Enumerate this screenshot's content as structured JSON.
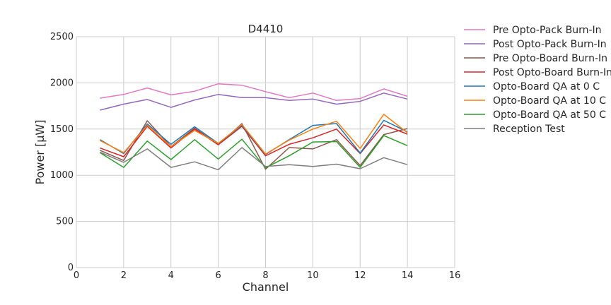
{
  "chart_data": {
    "type": "line",
    "title": "D4410",
    "xlabel": "Channel",
    "ylabel": "Power [μW]",
    "xlim": [
      0,
      16
    ],
    "ylim": [
      0,
      2500
    ],
    "xticks": [
      0,
      2,
      4,
      6,
      8,
      10,
      12,
      14,
      16
    ],
    "yticks": [
      0,
      500,
      1000,
      1500,
      2000,
      2500
    ],
    "grid": true,
    "legend_position": "outside right",
    "x": [
      1,
      2,
      3,
      4,
      5,
      6,
      7,
      8,
      9,
      10,
      11,
      12,
      13,
      14
    ],
    "series": [
      {
        "name": "Pre Opto-Pack Burn-In",
        "color": "#e377c2",
        "values": [
          1835,
          1875,
          1945,
          1870,
          1910,
          1990,
          1975,
          1905,
          1840,
          1890,
          1810,
          1830,
          1935,
          1855
        ]
      },
      {
        "name": "Post Opto-Pack Burn-In",
        "color": "#9467bd",
        "values": [
          1705,
          1770,
          1820,
          1735,
          1815,
          1875,
          1840,
          1840,
          1810,
          1825,
          1770,
          1800,
          1890,
          1825
        ]
      },
      {
        "name": "Pre Opto-Board Burn-In",
        "color": "#8c564b",
        "values": [
          1270,
          1160,
          1590,
          1310,
          1510,
          1330,
          1560,
          1065,
          1300,
          1285,
          1385,
          1105,
          1440,
          1505
        ]
      },
      {
        "name": "Post Opto-Board Burn-In",
        "color": "#d62728",
        "values": [
          1295,
          1200,
          1530,
          1295,
          1500,
          1330,
          1530,
          1210,
          1335,
          1405,
          1500,
          1235,
          1545,
          1445
        ]
      },
      {
        "name": "Opto-Board QA at 0 C",
        "color": "#1f77b4",
        "values": [
          1385,
          1235,
          1555,
          1335,
          1525,
          1345,
          1540,
          1225,
          1385,
          1540,
          1560,
          1240,
          1595,
          1470
        ]
      },
      {
        "name": "Opto-Board QA at 10 C",
        "color": "#ff7f0e",
        "values": [
          1375,
          1245,
          1540,
          1310,
          1485,
          1345,
          1550,
          1230,
          1380,
          1500,
          1585,
          1290,
          1660,
          1460
        ]
      },
      {
        "name": "Opto-Board QA at 50 C",
        "color": "#2ca02c",
        "values": [
          1245,
          1085,
          1370,
          1170,
          1385,
          1175,
          1390,
          1080,
          1210,
          1360,
          1365,
          1085,
          1430,
          1320
        ]
      },
      {
        "name": "Reception Test",
        "color": "#7f7f7f",
        "values": [
          1250,
          1140,
          1285,
          1085,
          1145,
          1060,
          1300,
          1095,
          1115,
          1095,
          1120,
          1070,
          1190,
          1115
        ]
      }
    ]
  }
}
